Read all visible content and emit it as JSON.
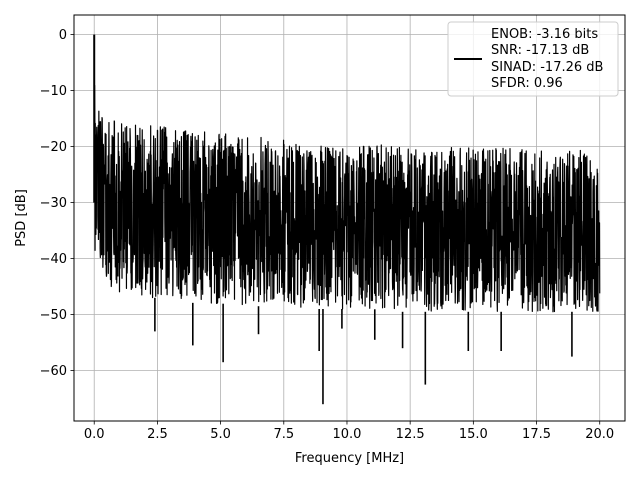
{
  "chart_data": {
    "type": "line",
    "xlabel": "Frequency [MHz]",
    "ylabel": "PSD [dB]",
    "xlim": [
      -0.8,
      21.0
    ],
    "ylim": [
      -69.0,
      3.5
    ],
    "xticks": [
      0.0,
      2.5,
      5.0,
      7.5,
      10.0,
      12.5,
      15.0,
      17.5,
      20.0
    ],
    "xtick_labels": [
      "0.0",
      "2.5",
      "5.0",
      "7.5",
      "10.0",
      "12.5",
      "15.0",
      "17.5",
      "20.0"
    ],
    "yticks": [
      0,
      -10,
      -20,
      -30,
      -40,
      -50,
      -60
    ],
    "ytick_labels": [
      "0",
      "−10",
      "−20",
      "−30",
      "−40",
      "−50",
      "−60"
    ],
    "grid": true,
    "legend_position": "upper-right",
    "series": [
      {
        "color": "#000000",
        "peak": {
          "x": 0.0,
          "y": 0.0
        },
        "envelope": {
          "x": [
            0.0,
            0.1,
            0.3,
            0.5,
            1.0,
            1.5,
            2.0,
            3.0,
            4.0,
            5.0,
            6.0,
            7.0,
            8.0,
            9.0,
            10.0,
            11.0,
            12.0,
            13.0,
            14.0,
            15.0,
            16.0,
            17.0,
            18.0,
            19.0,
            20.0
          ],
          "top": [
            0.0,
            -12.0,
            -14.0,
            -15.0,
            -15.5,
            -16.0,
            -16.0,
            -16.5,
            -17.0,
            -17.5,
            -18.0,
            -18.5,
            -19.0,
            -19.0,
            -19.5,
            -19.5,
            -20.0,
            -20.0,
            -20.0,
            -20.0,
            -20.0,
            -20.0,
            -20.5,
            -20.5,
            -21.0
          ],
          "bottom": [
            -38.0,
            -40.0,
            -43.0,
            -45.0,
            -46.0,
            -46.0,
            -47.0,
            -47.0,
            -48.0,
            -48.0,
            -48.5,
            -48.5,
            -49.0,
            -49.0,
            -49.0,
            -49.0,
            -49.5,
            -49.5,
            -49.5,
            -49.5,
            -49.5,
            -49.5,
            -49.5,
            -49.5,
            -49.5
          ]
        },
        "deep_nulls": [
          {
            "x": 2.4,
            "y": -53.0
          },
          {
            "x": 3.9,
            "y": -55.5
          },
          {
            "x": 5.1,
            "y": -58.5
          },
          {
            "x": 6.5,
            "y": -53.5
          },
          {
            "x": 8.9,
            "y": -56.5
          },
          {
            "x": 9.05,
            "y": -66.0
          },
          {
            "x": 9.8,
            "y": -52.5
          },
          {
            "x": 11.1,
            "y": -54.5
          },
          {
            "x": 12.2,
            "y": -56.0
          },
          {
            "x": 13.1,
            "y": -62.5
          },
          {
            "x": 14.8,
            "y": -56.5
          },
          {
            "x": 16.1,
            "y": -56.5
          },
          {
            "x": 18.9,
            "y": -57.5
          }
        ]
      }
    ],
    "legend": [
      "ENOB: -3.16 bits",
      "SNR: -17.13 dB",
      "SINAD: -17.26 dB",
      "SFDR: 0.96"
    ]
  }
}
